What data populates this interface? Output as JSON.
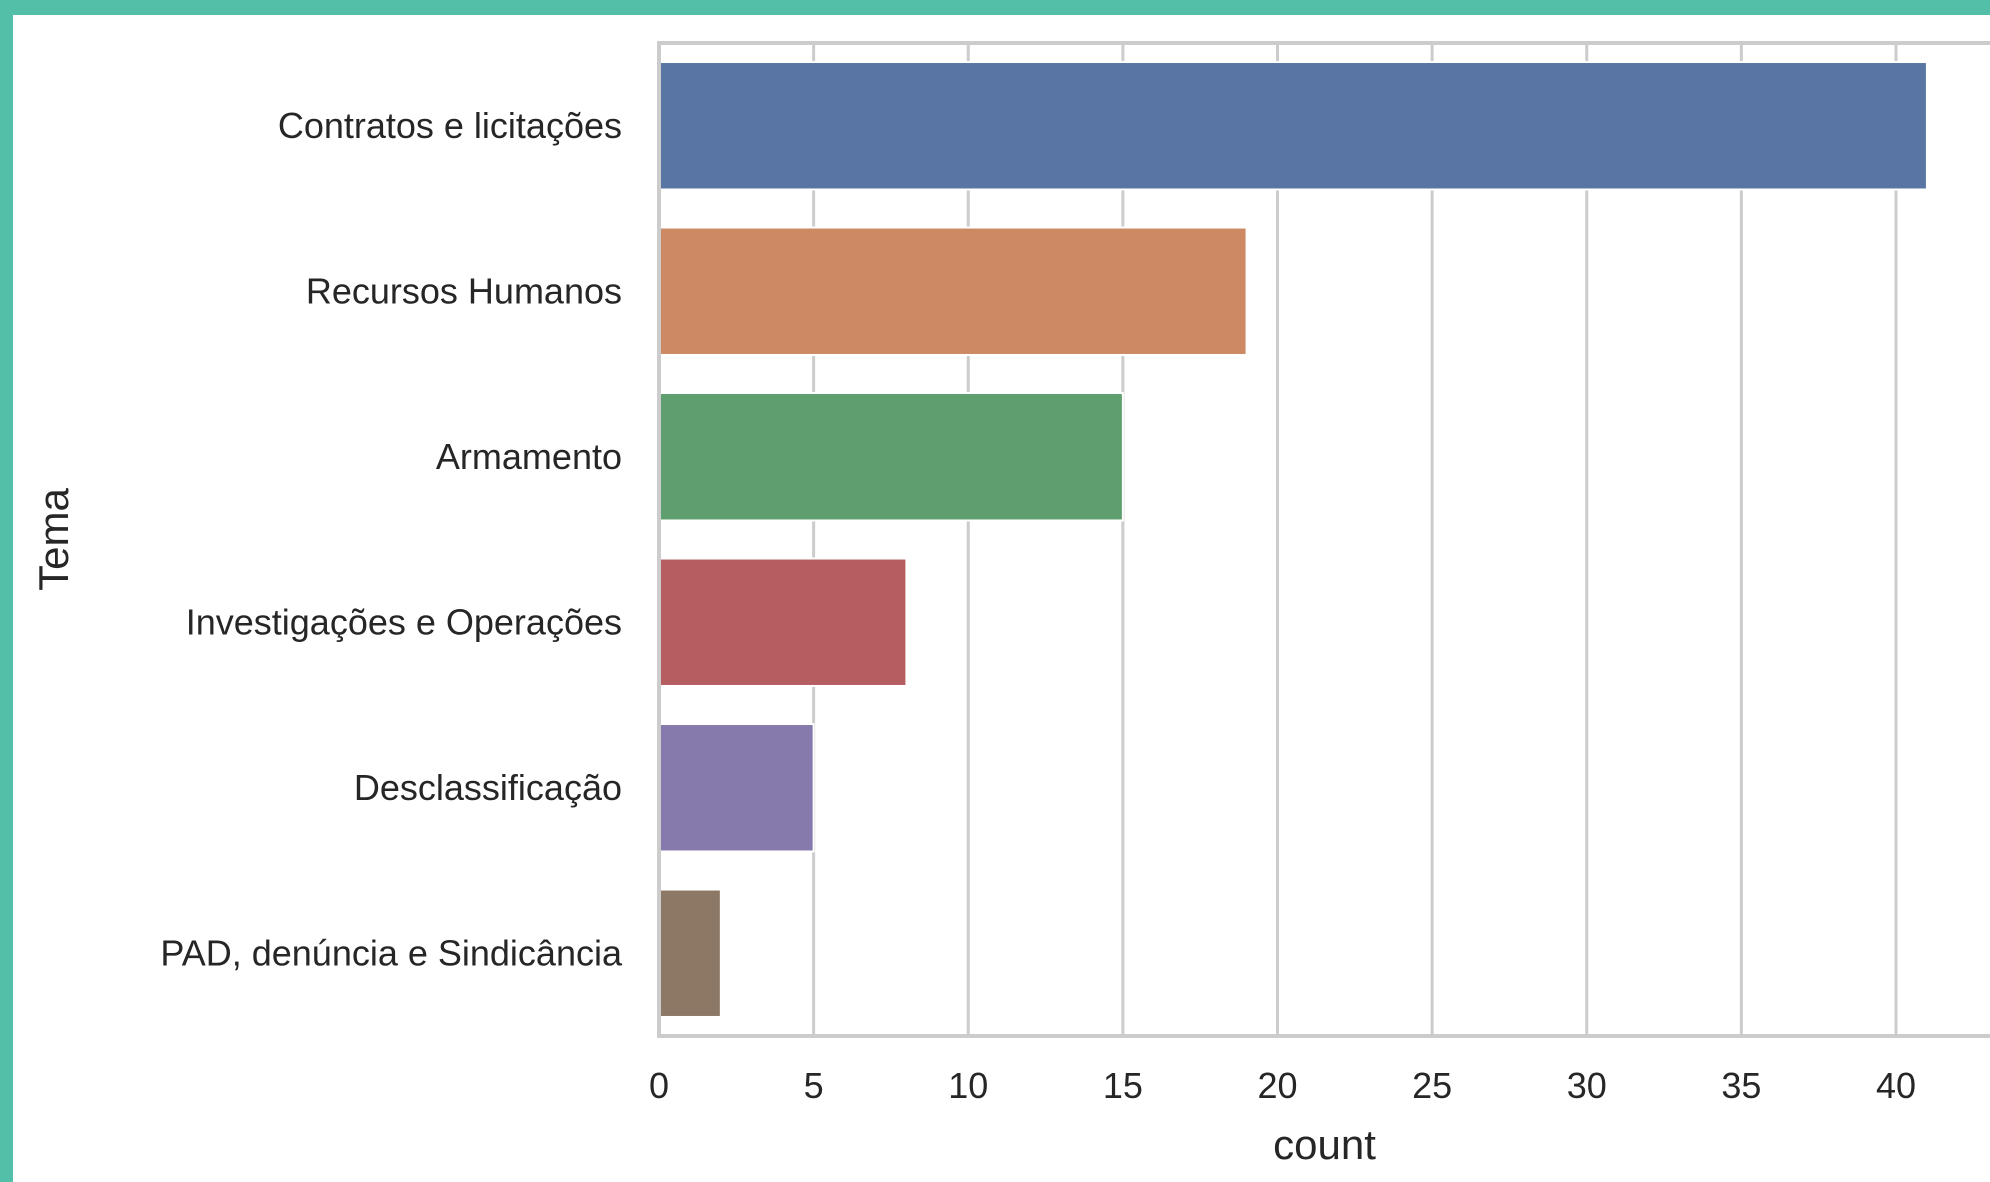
{
  "chart_data": {
    "type": "bar",
    "orientation": "horizontal",
    "xlabel": "count",
    "ylabel": "Tema",
    "xlim": [
      0,
      43
    ],
    "x_ticks": [
      0,
      5,
      10,
      15,
      20,
      25,
      30,
      35,
      40
    ],
    "grid": "vertical",
    "categories": [
      "Contratos e licitações",
      "Recursos Humanos",
      "Armamento",
      "Investigações e Operações",
      "Desclassificação",
      "PAD, denúncia e Sindicância"
    ],
    "values": [
      41,
      19,
      15,
      8,
      5,
      2
    ],
    "colors": [
      "#5875a4",
      "#cc8963",
      "#5f9e6e",
      "#b55d60",
      "#857aab",
      "#8d7866"
    ]
  }
}
